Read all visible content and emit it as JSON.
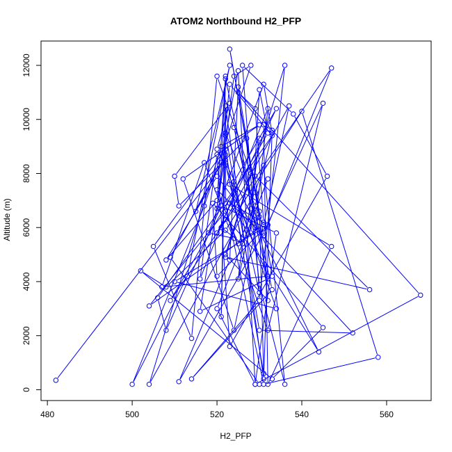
{
  "chart_data": {
    "type": "scatter",
    "title": "ATOM2 Northbound H2_PFP",
    "xlabel": "H2_PFP",
    "ylabel": "Altitude (m)",
    "xlim": [
      478.5,
      570.5
    ],
    "ylim": [
      -400,
      12900
    ],
    "x_ticks": [
      480,
      500,
      520,
      540,
      560
    ],
    "y_ticks": [
      0,
      2000,
      4000,
      6000,
      8000,
      10000,
      12000
    ],
    "grid": false,
    "legend": "none",
    "connect_points": true,
    "colors": {
      "series": "#0000ff",
      "axis": "#000000",
      "background": "#ffffff"
    },
    "series": [
      {
        "x": [
          482,
          522,
          521,
          508,
          506,
          533,
          523,
          520,
          524,
          528,
          517,
          500,
          513,
          523,
          515,
          522,
          516,
          532,
          524,
          530,
          510,
          534,
          522,
          520,
          523,
          510,
          511,
          527,
          528,
          530,
          532,
          509,
          547,
          531,
          523,
          530,
          525,
          523,
          511,
          531,
          545,
          532,
          522,
          504,
          531,
          537,
          521,
          526,
          525,
          533,
          531,
          518,
          524,
          522,
          520,
          534,
          524,
          530,
          526,
          538,
          546,
          523,
          520,
          516,
          532,
          529,
          520,
          525,
          529,
          522,
          530,
          552,
          530,
          520,
          508,
          520,
          522,
          533,
          514,
          530,
          536,
          522,
          556,
          529,
          532,
          522,
          528,
          520,
          514,
          505,
          522,
          531,
          530,
          524,
          512,
          530,
          521,
          504,
          529,
          531,
          536,
          530,
          528,
          530,
          527,
          523,
          532,
          520,
          519,
          545,
          533,
          502,
          508,
          522,
          540,
          558,
          531,
          522,
          522,
          531,
          533,
          531,
          532,
          547,
          523,
          532,
          507,
          517,
          521,
          534,
          529,
          520,
          532,
          526,
          522,
          544,
          533,
          531,
          529,
          525,
          568,
          529,
          525,
          522,
          521,
          522,
          521,
          509,
          530
        ],
        "y": [
          350,
          8500,
          6800,
          2200,
          3400,
          9400,
          11300,
          6700,
          11600,
          12000,
          6800,
          200,
          4200,
          12000,
          6600,
          8700,
          2900,
          4100,
          9700,
          5900,
          4000,
          3000,
          8300,
          8900,
          10600,
          7900,
          6800,
          9300,
          5800,
          11100,
          9500,
          3300,
          11900,
          5700,
          12600,
          6400,
          11200,
          4800,
          300,
          5800,
          10600,
          2200,
          6600,
          3100,
          6100,
          10500,
          6000,
          5400,
          4100,
          9500,
          11300,
          5800,
          5600,
          6300,
          5800,
          10400,
          7700,
          3600,
          12000,
          10200,
          7900,
          1600,
          8700,
          4100,
          10400,
          6000,
          7400,
          5400,
          6800,
          9500,
          2200,
          2100,
          5800,
          7900,
          4800,
          7000,
          11500,
          3700,
          400,
          3300,
          12000,
          4900,
          3700,
          7900,
          3300,
          5000,
          8000,
          11600,
          1900,
          5300,
          8900,
          600,
          6600,
          2200,
          7800,
          9800,
          9000,
          200,
          7300,
          8300,
          200,
          3900,
          6700,
          9300,
          5900,
          6900,
          6100,
          4200,
          6900,
          2300,
          400,
          4400,
          3800,
          5900,
          10300,
          1200,
          200,
          6900,
          10500,
          400,
          9600,
          9800,
          200,
          5300,
          7600,
          4200,
          3800,
          8400,
          6800,
          5800,
          200,
          3000,
          7800,
          5400,
          8400,
          1400,
          4200,
          6200,
          10400,
          11000,
          3500,
          200,
          11800,
          9400,
          2700,
          11600,
          8400,
          4900,
          200
        ]
      }
    ]
  }
}
